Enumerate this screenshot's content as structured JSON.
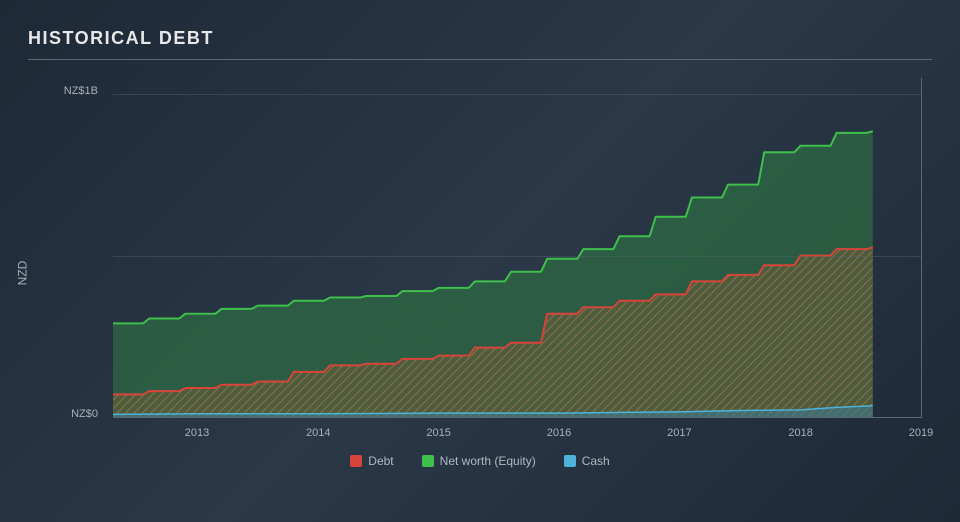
{
  "chart": {
    "type": "area",
    "title": "HISTORICAL DEBT",
    "title_fontsize": 18,
    "title_color": "#e8e8e8",
    "background_gradient": [
      "#1e2936",
      "#2a3847",
      "#1e2936"
    ],
    "label_color": "#a8b0b8",
    "label_fontsize": 11,
    "grid_color": "rgba(90,104,118,0.4)",
    "border_color": "#5a6876",
    "y_axis": {
      "label": "NZD",
      "ticks": [
        {
          "value": 0,
          "label": "NZ$0"
        },
        {
          "value": 1000,
          "label": "NZ$1B"
        }
      ],
      "ylim": [
        0,
        1050
      ],
      "gridlines": [
        250,
        500,
        750
      ]
    },
    "x_axis": {
      "ticks": [
        "2013",
        "2014",
        "2015",
        "2016",
        "2017",
        "2018",
        "2019"
      ],
      "xlim": [
        2012.3,
        2019.0
      ]
    },
    "series": {
      "equity": {
        "label": "Net worth (Equity)",
        "stroke": "#3fbf4c",
        "stroke_width": 2,
        "fill": "#2d6b44",
        "fill_opacity": 0.75,
        "points": [
          {
            "x": 2012.3,
            "y": 290
          },
          {
            "x": 2012.55,
            "y": 290
          },
          {
            "x": 2012.6,
            "y": 305
          },
          {
            "x": 2012.85,
            "y": 305
          },
          {
            "x": 2012.9,
            "y": 320
          },
          {
            "x": 2013.15,
            "y": 320
          },
          {
            "x": 2013.2,
            "y": 335
          },
          {
            "x": 2013.45,
            "y": 335
          },
          {
            "x": 2013.5,
            "y": 345
          },
          {
            "x": 2013.75,
            "y": 345
          },
          {
            "x": 2013.8,
            "y": 360
          },
          {
            "x": 2014.05,
            "y": 360
          },
          {
            "x": 2014.1,
            "y": 370
          },
          {
            "x": 2014.35,
            "y": 370
          },
          {
            "x": 2014.4,
            "y": 375
          },
          {
            "x": 2014.65,
            "y": 375
          },
          {
            "x": 2014.7,
            "y": 390
          },
          {
            "x": 2014.95,
            "y": 390
          },
          {
            "x": 2015.0,
            "y": 400
          },
          {
            "x": 2015.25,
            "y": 400
          },
          {
            "x": 2015.3,
            "y": 420
          },
          {
            "x": 2015.55,
            "y": 420
          },
          {
            "x": 2015.6,
            "y": 450
          },
          {
            "x": 2015.85,
            "y": 450
          },
          {
            "x": 2015.9,
            "y": 490
          },
          {
            "x": 2016.15,
            "y": 490
          },
          {
            "x": 2016.2,
            "y": 520
          },
          {
            "x": 2016.45,
            "y": 520
          },
          {
            "x": 2016.5,
            "y": 560
          },
          {
            "x": 2016.75,
            "y": 560
          },
          {
            "x": 2016.8,
            "y": 620
          },
          {
            "x": 2017.05,
            "y": 620
          },
          {
            "x": 2017.1,
            "y": 680
          },
          {
            "x": 2017.35,
            "y": 680
          },
          {
            "x": 2017.4,
            "y": 720
          },
          {
            "x": 2017.65,
            "y": 720
          },
          {
            "x": 2017.7,
            "y": 820
          },
          {
            "x": 2017.95,
            "y": 820
          },
          {
            "x": 2018.0,
            "y": 840
          },
          {
            "x": 2018.25,
            "y": 840
          },
          {
            "x": 2018.3,
            "y": 880
          },
          {
            "x": 2018.55,
            "y": 880
          },
          {
            "x": 2018.6,
            "y": 885
          },
          {
            "x": 2018.6,
            "y": 0
          }
        ]
      },
      "debt": {
        "label": "Debt",
        "stroke": "#d9443a",
        "stroke_width": 2,
        "fill_pattern": "diagonal-hatch",
        "fill_base": "#6b5a3a",
        "fill_opacity": 0.55,
        "points": [
          {
            "x": 2012.3,
            "y": 70
          },
          {
            "x": 2012.55,
            "y": 70
          },
          {
            "x": 2012.6,
            "y": 80
          },
          {
            "x": 2012.85,
            "y": 80
          },
          {
            "x": 2012.9,
            "y": 90
          },
          {
            "x": 2013.15,
            "y": 90
          },
          {
            "x": 2013.2,
            "y": 100
          },
          {
            "x": 2013.45,
            "y": 100
          },
          {
            "x": 2013.5,
            "y": 110
          },
          {
            "x": 2013.75,
            "y": 110
          },
          {
            "x": 2013.8,
            "y": 140
          },
          {
            "x": 2014.05,
            "y": 140
          },
          {
            "x": 2014.1,
            "y": 160
          },
          {
            "x": 2014.35,
            "y": 160
          },
          {
            "x": 2014.4,
            "y": 165
          },
          {
            "x": 2014.65,
            "y": 165
          },
          {
            "x": 2014.7,
            "y": 180
          },
          {
            "x": 2014.95,
            "y": 180
          },
          {
            "x": 2015.0,
            "y": 190
          },
          {
            "x": 2015.25,
            "y": 190
          },
          {
            "x": 2015.3,
            "y": 215
          },
          {
            "x": 2015.55,
            "y": 215
          },
          {
            "x": 2015.6,
            "y": 230
          },
          {
            "x": 2015.85,
            "y": 230
          },
          {
            "x": 2015.9,
            "y": 320
          },
          {
            "x": 2016.15,
            "y": 320
          },
          {
            "x": 2016.2,
            "y": 340
          },
          {
            "x": 2016.45,
            "y": 340
          },
          {
            "x": 2016.5,
            "y": 360
          },
          {
            "x": 2016.75,
            "y": 360
          },
          {
            "x": 2016.8,
            "y": 380
          },
          {
            "x": 2017.05,
            "y": 380
          },
          {
            "x": 2017.1,
            "y": 420
          },
          {
            "x": 2017.35,
            "y": 420
          },
          {
            "x": 2017.4,
            "y": 440
          },
          {
            "x": 2017.65,
            "y": 440
          },
          {
            "x": 2017.7,
            "y": 470
          },
          {
            "x": 2017.95,
            "y": 470
          },
          {
            "x": 2018.0,
            "y": 500
          },
          {
            "x": 2018.25,
            "y": 500
          },
          {
            "x": 2018.3,
            "y": 520
          },
          {
            "x": 2018.55,
            "y": 520
          },
          {
            "x": 2018.6,
            "y": 525
          },
          {
            "x": 2018.6,
            "y": 0
          }
        ]
      },
      "cash": {
        "label": "Cash",
        "stroke": "#4fb2d9",
        "stroke_width": 1.5,
        "fill": "#3a7a95",
        "fill_opacity": 0.55,
        "points": [
          {
            "x": 2012.3,
            "y": 8
          },
          {
            "x": 2013.0,
            "y": 10
          },
          {
            "x": 2014.0,
            "y": 10
          },
          {
            "x": 2015.0,
            "y": 12
          },
          {
            "x": 2016.0,
            "y": 12
          },
          {
            "x": 2017.0,
            "y": 16
          },
          {
            "x": 2017.5,
            "y": 20
          },
          {
            "x": 2018.0,
            "y": 22
          },
          {
            "x": 2018.3,
            "y": 30
          },
          {
            "x": 2018.6,
            "y": 35
          },
          {
            "x": 2018.6,
            "y": 0
          }
        ]
      }
    },
    "legend": {
      "items": [
        {
          "key": "debt",
          "label": "Debt",
          "color": "#d9443a"
        },
        {
          "key": "equity",
          "label": "Net worth (Equity)",
          "color": "#3fbf4c"
        },
        {
          "key": "cash",
          "label": "Cash",
          "color": "#4fb2d9"
        }
      ]
    }
  }
}
